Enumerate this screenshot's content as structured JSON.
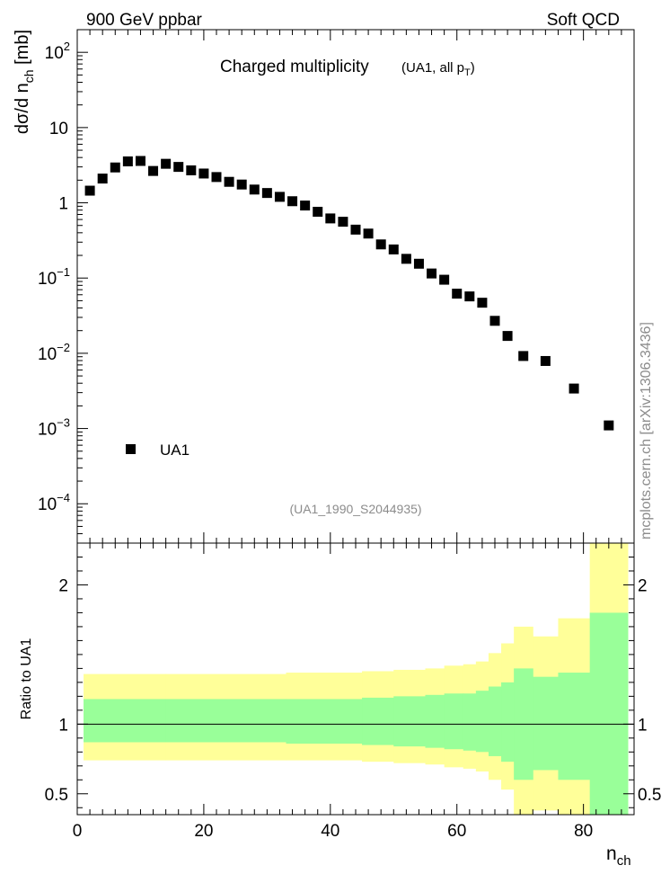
{
  "header": {
    "left_label": "900 GeV ppbar",
    "right_label": "Soft QCD"
  },
  "side_label": "mcplots.cern.ch [arXiv:1306.3436]",
  "colors": {
    "yellow_band": "#ffff99",
    "green_band": "#99ff99",
    "marker": "#000000",
    "watermark": "#8c8c8c"
  },
  "chart_data": [
    {
      "type": "scatter",
      "title_main": "Charged multiplicity",
      "title_sub_prefix": "(UA1, all p",
      "title_sub_subscript": "T",
      "title_sub_suffix": ")",
      "ylabel_main": "dσ/d n",
      "ylabel_sub": "ch",
      "ylabel_unit": " [mb]",
      "y_scale": "log",
      "xlim": [
        0,
        88
      ],
      "ylim": [
        3e-05,
        200
      ],
      "y_ticks": [
        {
          "v": 100,
          "base": "10",
          "exp": "2"
        },
        {
          "v": 10,
          "base": "10",
          "exp": ""
        },
        {
          "v": 1,
          "base": "1",
          "exp": ""
        },
        {
          "v": 0.1,
          "base": "10",
          "exp": "−1"
        },
        {
          "v": 0.01,
          "base": "10",
          "exp": "−2"
        },
        {
          "v": 0.001,
          "base": "10",
          "exp": "−3"
        },
        {
          "v": 0.0001,
          "base": "10",
          "exp": "−4"
        }
      ],
      "legend": {
        "label": "UA1",
        "position": "bottom-left"
      },
      "ref_tag": "(UA1_1990_S2044935)",
      "series": [
        {
          "name": "UA1",
          "marker": "square",
          "points": [
            {
              "x": 2,
              "y": 1.45
            },
            {
              "x": 4,
              "y": 2.1
            },
            {
              "x": 6,
              "y": 2.95
            },
            {
              "x": 8,
              "y": 3.55
            },
            {
              "x": 10,
              "y": 3.6
            },
            {
              "x": 12,
              "y": 2.65
            },
            {
              "x": 14,
              "y": 3.3
            },
            {
              "x": 16,
              "y": 3.0
            },
            {
              "x": 18,
              "y": 2.7
            },
            {
              "x": 20,
              "y": 2.45
            },
            {
              "x": 22,
              "y": 2.2
            },
            {
              "x": 24,
              "y": 1.9
            },
            {
              "x": 26,
              "y": 1.75
            },
            {
              "x": 28,
              "y": 1.5
            },
            {
              "x": 30,
              "y": 1.35
            },
            {
              "x": 32,
              "y": 1.2
            },
            {
              "x": 34,
              "y": 1.05
            },
            {
              "x": 36,
              "y": 0.92
            },
            {
              "x": 38,
              "y": 0.76
            },
            {
              "x": 40,
              "y": 0.62
            },
            {
              "x": 42,
              "y": 0.56
            },
            {
              "x": 44,
              "y": 0.44
            },
            {
              "x": 46,
              "y": 0.39
            },
            {
              "x": 48,
              "y": 0.28
            },
            {
              "x": 50,
              "y": 0.24
            },
            {
              "x": 52,
              "y": 0.18
            },
            {
              "x": 54,
              "y": 0.155
            },
            {
              "x": 56,
              "y": 0.115
            },
            {
              "x": 58,
              "y": 0.095
            },
            {
              "x": 60,
              "y": 0.062
            },
            {
              "x": 62,
              "y": 0.057
            },
            {
              "x": 64,
              "y": 0.047
            },
            {
              "x": 66,
              "y": 0.027
            },
            {
              "x": 68,
              "y": 0.017
            },
            {
              "x": 70.5,
              "y": 0.0092
            },
            {
              "x": 74,
              "y": 0.0079
            },
            {
              "x": 78.5,
              "y": 0.0034
            },
            {
              "x": 84,
              "y": 0.0011
            }
          ]
        }
      ]
    },
    {
      "type": "area",
      "ylabel": "Ratio to UA1",
      "xlabel_main": "n",
      "xlabel_sub": "ch",
      "xlim": [
        0,
        88
      ],
      "ylim": [
        0.35,
        2.3
      ],
      "x_ticks": [
        0,
        20,
        40,
        60,
        80
      ],
      "y_ticks": [
        {
          "v": 0.5,
          "label": "0.5"
        },
        {
          "v": 1,
          "label": "1"
        },
        {
          "v": 2,
          "label": "2"
        }
      ],
      "reference_line": 1,
      "bands": [
        {
          "x0": 1,
          "x1": 14,
          "yellow": [
            0.74,
            1.36
          ],
          "green": [
            0.87,
            1.18
          ]
        },
        {
          "x0": 14,
          "x1": 33,
          "yellow": [
            0.74,
            1.36
          ],
          "green": [
            0.87,
            1.18
          ]
        },
        {
          "x0": 33,
          "x1": 45,
          "yellow": [
            0.74,
            1.37
          ],
          "green": [
            0.86,
            1.18
          ]
        },
        {
          "x0": 45,
          "x1": 50,
          "yellow": [
            0.73,
            1.38
          ],
          "green": [
            0.85,
            1.19
          ]
        },
        {
          "x0": 50,
          "x1": 55,
          "yellow": [
            0.72,
            1.39
          ],
          "green": [
            0.84,
            1.2
          ]
        },
        {
          "x0": 55,
          "x1": 58,
          "yellow": [
            0.71,
            1.4
          ],
          "green": [
            0.83,
            1.21
          ]
        },
        {
          "x0": 58,
          "x1": 61,
          "yellow": [
            0.69,
            1.42
          ],
          "green": [
            0.82,
            1.22
          ]
        },
        {
          "x0": 61,
          "x1": 63,
          "yellow": [
            0.68,
            1.43
          ],
          "green": [
            0.81,
            1.22
          ]
        },
        {
          "x0": 63,
          "x1": 65,
          "yellow": [
            0.66,
            1.45
          ],
          "green": [
            0.8,
            1.24
          ]
        },
        {
          "x0": 65,
          "x1": 67,
          "yellow": [
            0.6,
            1.51
          ],
          "green": [
            0.77,
            1.27
          ]
        },
        {
          "x0": 67,
          "x1": 69,
          "yellow": [
            0.53,
            1.58
          ],
          "green": [
            0.73,
            1.3
          ]
        },
        {
          "x0": 69,
          "x1": 72,
          "yellow": [
            0.35,
            1.7
          ],
          "green": [
            0.6,
            1.4
          ]
        },
        {
          "x0": 72,
          "x1": 76,
          "yellow": [
            0.38,
            1.63
          ],
          "green": [
            0.67,
            1.34
          ]
        },
        {
          "x0": 76,
          "x1": 81,
          "yellow": [
            0.35,
            1.76
          ],
          "green": [
            0.6,
            1.37
          ]
        },
        {
          "x0": 81,
          "x1": 87,
          "yellow": [
            0.35,
            2.3
          ],
          "green": [
            0.35,
            1.8
          ]
        }
      ]
    }
  ]
}
